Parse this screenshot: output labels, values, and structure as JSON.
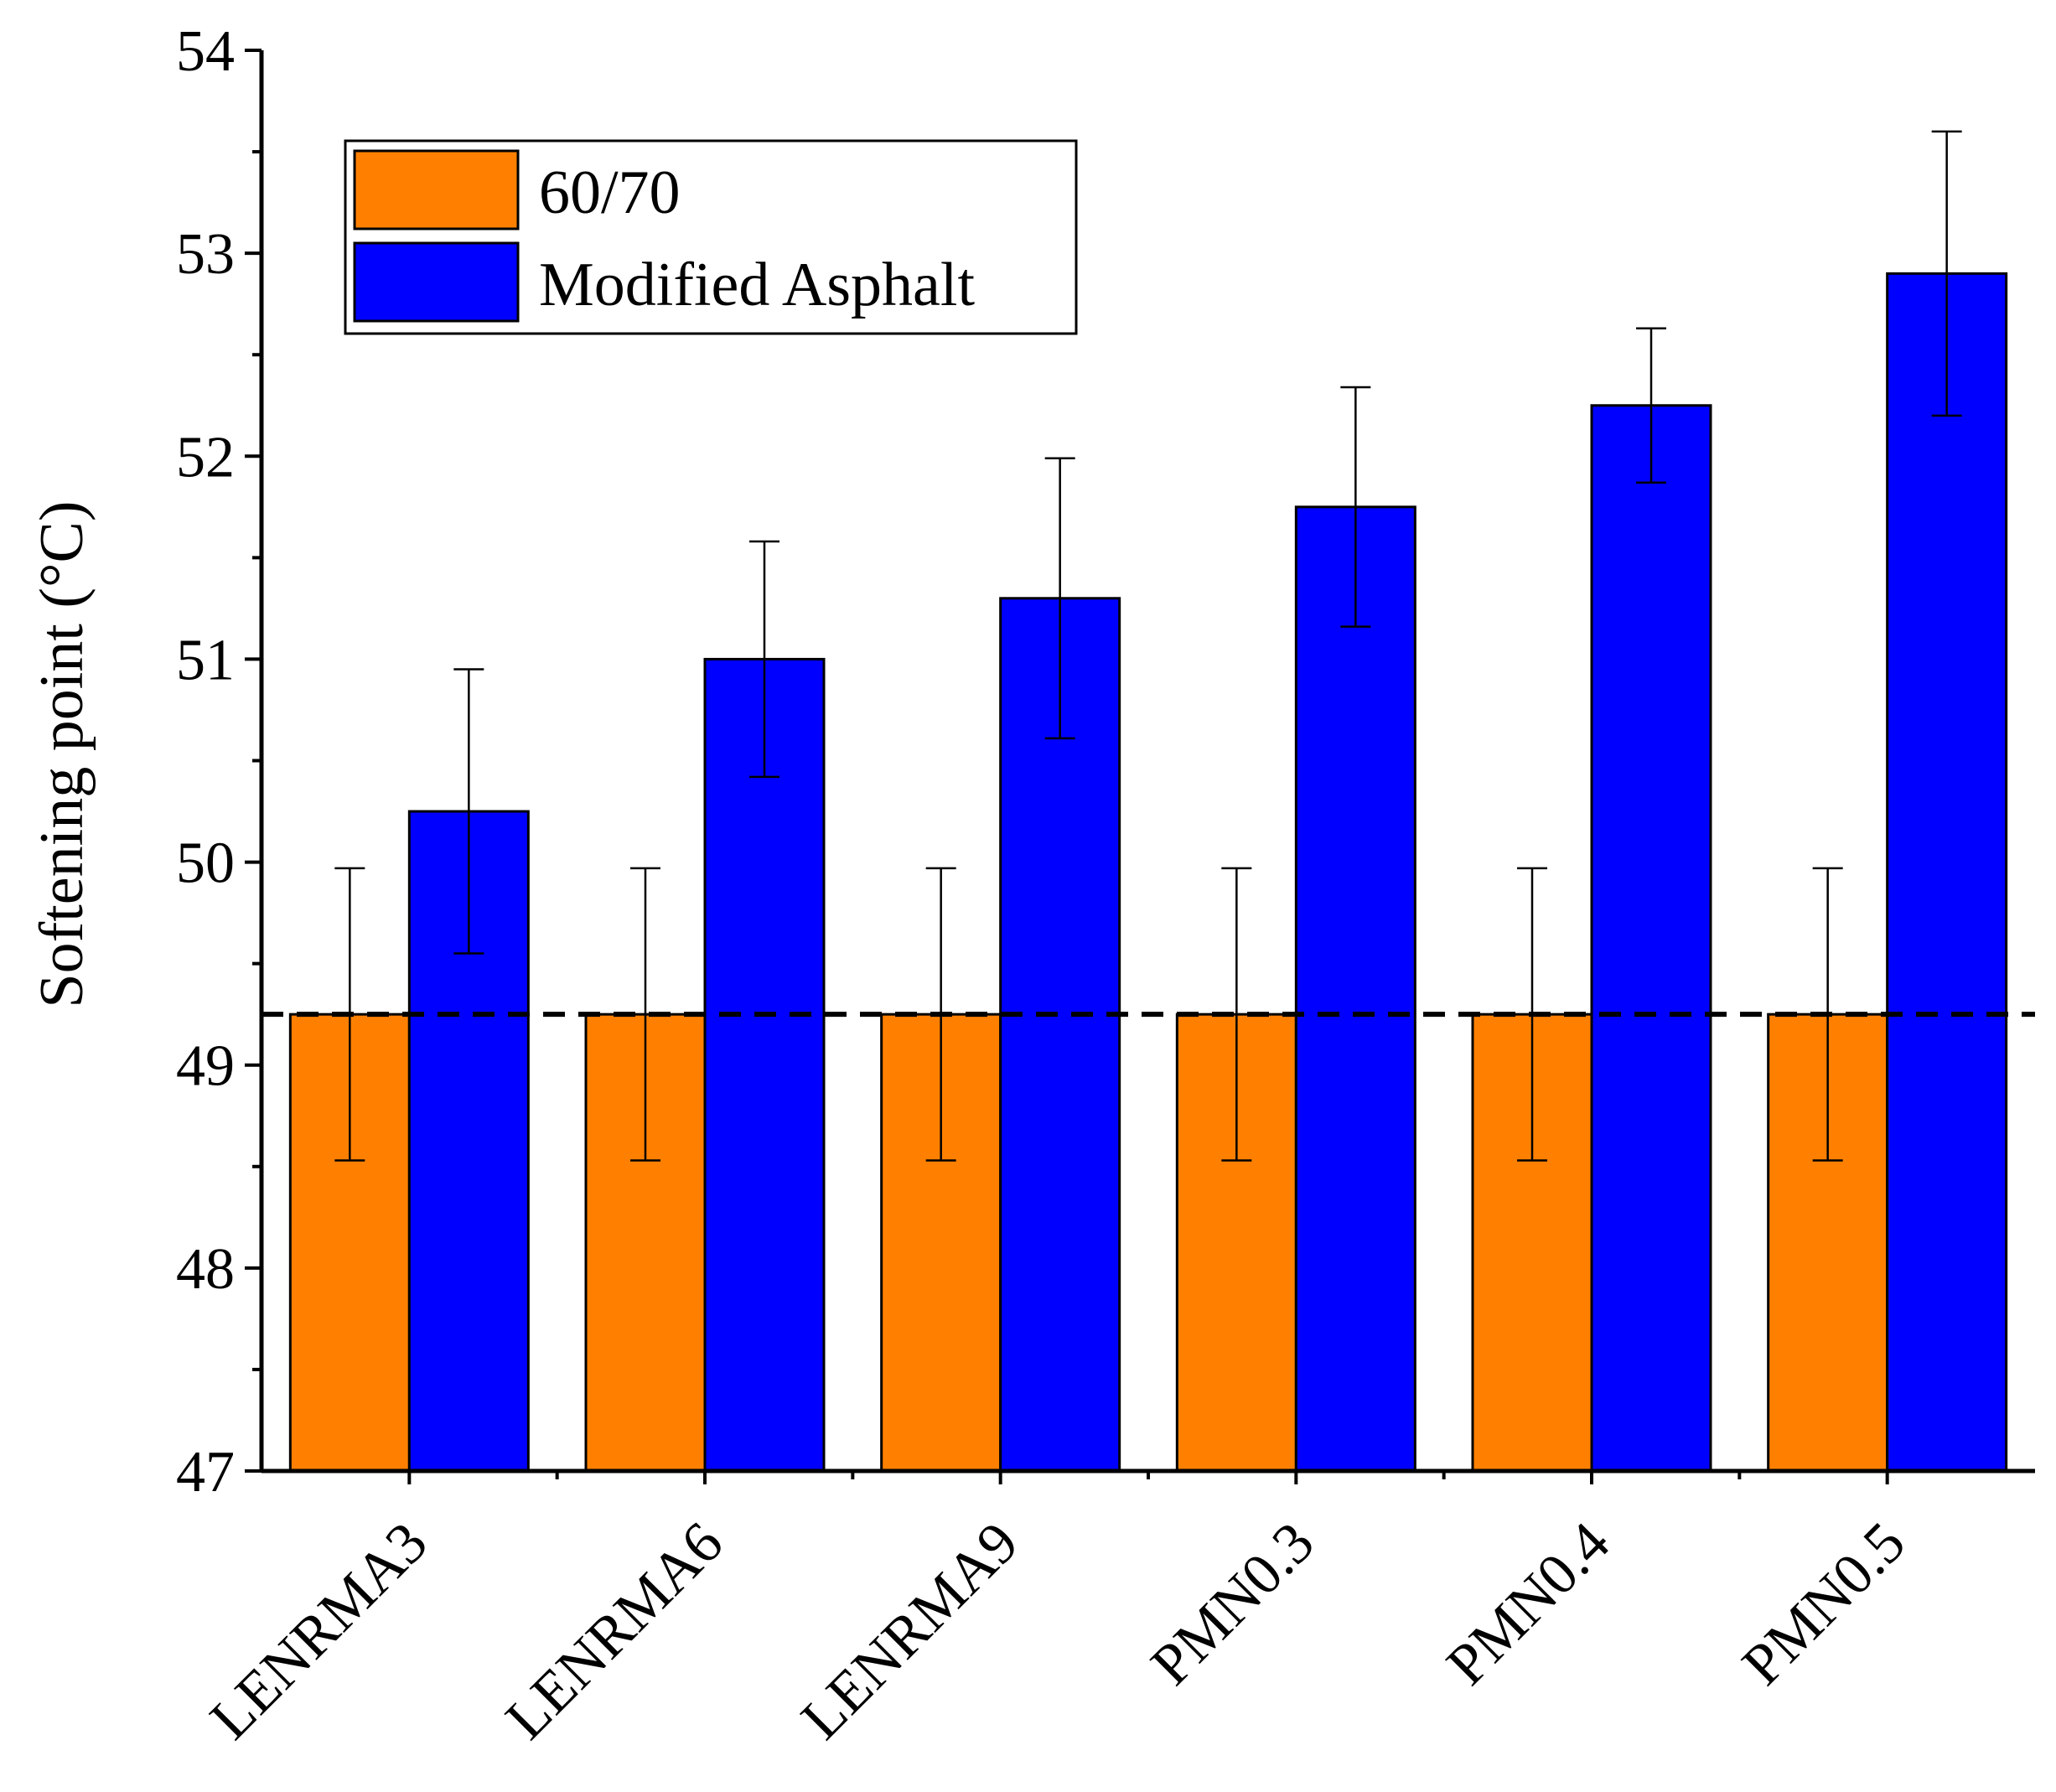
{
  "chart_data": {
    "type": "bar",
    "title": "",
    "xlabel": "",
    "ylabel": "Softening point (°C)",
    "ylim": [
      47,
      54
    ],
    "yticks": [
      47,
      48,
      49,
      50,
      51,
      52,
      53,
      54
    ],
    "categories": [
      "LENRMA3",
      "LENRMA6",
      "LENRMA9",
      "PMN0.3",
      "PMN0.4",
      "PMN0.5"
    ],
    "series": [
      {
        "name": "60/70",
        "color": "#FF8000",
        "values": [
          49.25,
          49.25,
          49.25,
          49.25,
          49.25,
          49.25
        ],
        "errors": [
          0.72,
          0.72,
          0.72,
          0.72,
          0.72,
          0.72
        ]
      },
      {
        "name": "Modified Asphalt",
        "color": "#0000FF",
        "values": [
          50.25,
          51.0,
          51.3,
          51.75,
          52.25,
          52.9
        ],
        "errors": [
          0.7,
          0.58,
          0.69,
          0.59,
          0.38,
          0.7
        ]
      }
    ],
    "reference_line": {
      "value": 49.25,
      "style": "dashed",
      "color": "#000000"
    },
    "legend": {
      "position": "top-left"
    },
    "grid": false
  }
}
